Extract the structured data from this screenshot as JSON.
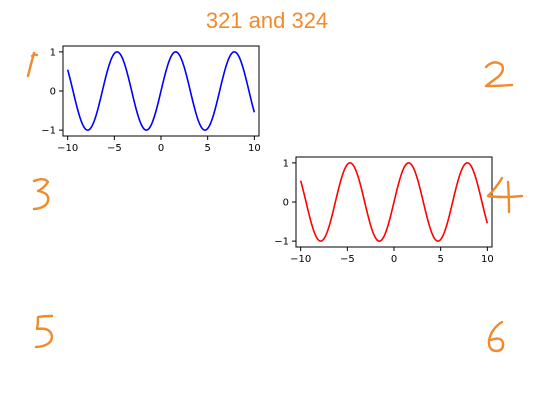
{
  "title": "321 and 324",
  "annotation_color": "#f28a2a",
  "chart_data": [
    {
      "type": "line",
      "subplot": "321",
      "function": "sin(x)",
      "xlim": [
        -10.5,
        10.5
      ],
      "ylim": [
        -1.15,
        1.15
      ],
      "x_ticks": [
        -10,
        -5,
        0,
        5,
        10
      ],
      "y_ticks": [
        -1,
        0,
        1
      ],
      "x_tick_labels": [
        "−10",
        "−5",
        "0",
        "5",
        "10"
      ],
      "y_tick_labels": [
        "−1",
        "0",
        "1"
      ],
      "x_range": [
        -10,
        10
      ],
      "series": [
        {
          "color": "#0000ff"
        }
      ],
      "grid": false
    },
    {
      "type": "line",
      "subplot": "324",
      "function": "sin(x)",
      "xlim": [
        -10.5,
        10.5
      ],
      "ylim": [
        -1.15,
        1.15
      ],
      "x_ticks": [
        -10,
        -5,
        0,
        5,
        10
      ],
      "y_ticks": [
        -1,
        0,
        1
      ],
      "x_tick_labels": [
        "−10",
        "−5",
        "0",
        "5",
        "10"
      ],
      "y_tick_labels": [
        "−1",
        "0",
        "1"
      ],
      "x_range": [
        -10,
        10
      ],
      "series": [
        {
          "color": "#ff0000"
        }
      ],
      "grid": false
    }
  ],
  "subplot_numbers": [
    "1",
    "2",
    "3",
    "4",
    "5",
    "6"
  ]
}
